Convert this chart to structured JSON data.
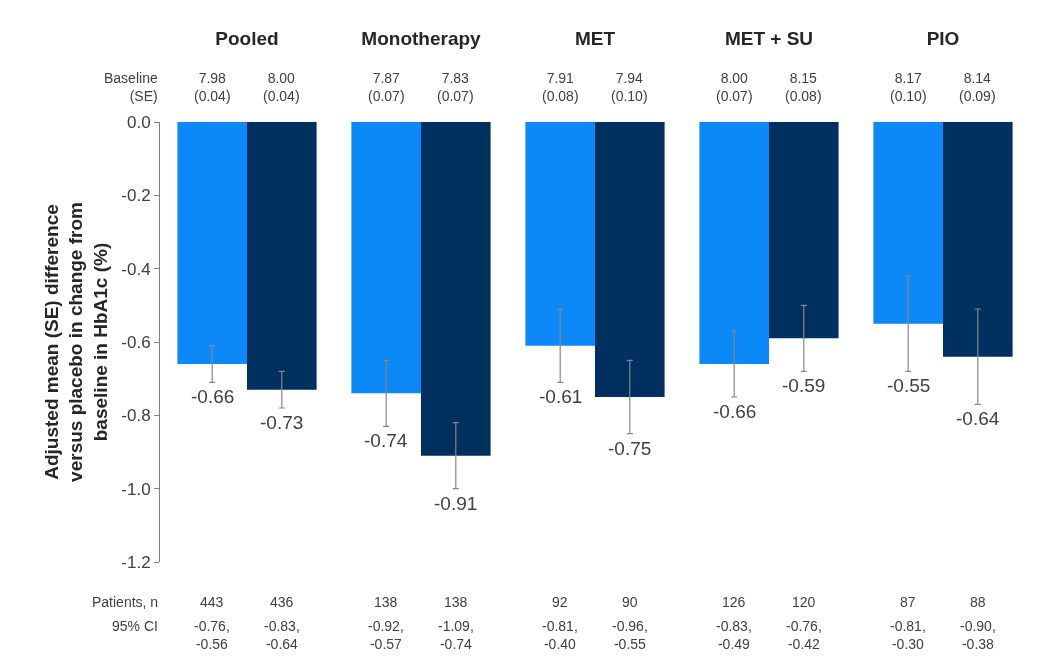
{
  "chart_data": {
    "type": "bar",
    "ylabel": "Adjusted mean (SE) difference\nversus placebo in change from\nbaseline in HbA1c (%)",
    "categories": [
      "Pooled",
      "Monotherapy",
      "MET",
      "MET + SU",
      "PIO"
    ],
    "series": [
      {
        "color": "#0d88f7",
        "values": [
          -0.66,
          -0.74,
          -0.61,
          -0.66,
          -0.55
        ],
        "errors": [
          0.05,
          0.09,
          0.1,
          0.09,
          0.13
        ]
      },
      {
        "color": "#00305f",
        "values": [
          -0.73,
          -0.91,
          -0.75,
          -0.59,
          -0.64
        ],
        "errors": [
          0.05,
          0.09,
          0.1,
          0.09,
          0.13
        ]
      }
    ],
    "ylim": [
      -1.2,
      0
    ],
    "yticks": [
      {
        "value": 0,
        "label": "0.0"
      },
      {
        "value": -0.2,
        "label": "-0.2"
      },
      {
        "value": -0.4,
        "label": "-0.4"
      },
      {
        "value": -0.6,
        "label": "-0.6"
      },
      {
        "value": -0.8,
        "label": "-0.8"
      },
      {
        "value": -1.0,
        "label": "-1.0"
      },
      {
        "value": -1.2,
        "label": "-1.2"
      }
    ],
    "data_labels": true,
    "annotations": [
      "Baseline\n(SE)",
      "7.98\n(0.04)",
      "8.00\n(0.04)",
      "7.87\n(0.07)",
      "7.83\n(0.07)",
      "7.91\n(0.08)",
      "7.94\n(0.10)",
      "8.00\n(0.07)",
      "8.15\n(0.08)",
      "8.17\n(0.10)",
      "8.14\n(0.09)",
      "Patients, n",
      "443",
      "436",
      "138",
      "138",
      "92",
      "90",
      "126",
      "120",
      "87",
      "88",
      "95% CI",
      "-0.76,\n-0.56",
      "-0.83,\n-0.64",
      "-0.92,\n-0.57",
      "-1.09,\n-0.74",
      "-0.81,\n-0.40",
      "-0.96,\n-0.55",
      "-0.83,\n-0.49",
      "-0.76,\n-0.42",
      "-0.81,\n-0.30",
      "-0.90,\n-0.38"
    ]
  }
}
